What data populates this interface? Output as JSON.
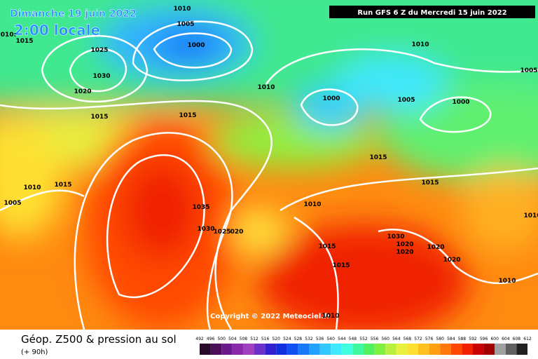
{
  "header": {
    "date": "Dimanche 19 juin 2022",
    "time": "2:00 locale",
    "run": "Run GFS 6 Z du Mercredi 15 juin 2022"
  },
  "map": {
    "copyright": "Copyright © 2022 Meteociel.fr",
    "isobar_labels": [
      "1010",
      "1005",
      "1000",
      "1025",
      "1030",
      "1020",
      "1015",
      "1015",
      "1010",
      "1000",
      "1005",
      "1000",
      "1010",
      "1005",
      "1015",
      "1015",
      "1015",
      "1010",
      "1015",
      "1005",
      "1035",
      "1030",
      "1025",
      "020",
      "1010",
      "1015",
      "1015",
      "1030",
      "1020",
      "1020",
      "1020",
      "1020",
      "1010",
      "1010",
      "1010",
      "010:"
    ]
  },
  "footer": {
    "title": "Géop. Z500 & pression au sol",
    "lead": "(+ 90h)",
    "scale": {
      "ticks": [
        492,
        496,
        500,
        504,
        508,
        512,
        516,
        520,
        524,
        528,
        532,
        536,
        540,
        544,
        548,
        552,
        556,
        560,
        564,
        568,
        572,
        576,
        580,
        584,
        588,
        592,
        596,
        600,
        604,
        608,
        612
      ],
      "colors": [
        "#2a0a2a",
        "#4b0f5a",
        "#6a1a8a",
        "#8a2aaa",
        "#a040c0",
        "#6a30c8",
        "#3020d0",
        "#1030e0",
        "#1050f0",
        "#1878f8",
        "#20a0ff",
        "#30c8ff",
        "#40e8ff",
        "#40ffe0",
        "#40f8a0",
        "#50f060",
        "#80f040",
        "#b8f040",
        "#e8f040",
        "#ffe030",
        "#ffc020",
        "#ffa010",
        "#ff7808",
        "#ff4800",
        "#f02000",
        "#c80000",
        "#a00000",
        "#a0a0a0",
        "#606060",
        "#202020"
      ]
    }
  }
}
